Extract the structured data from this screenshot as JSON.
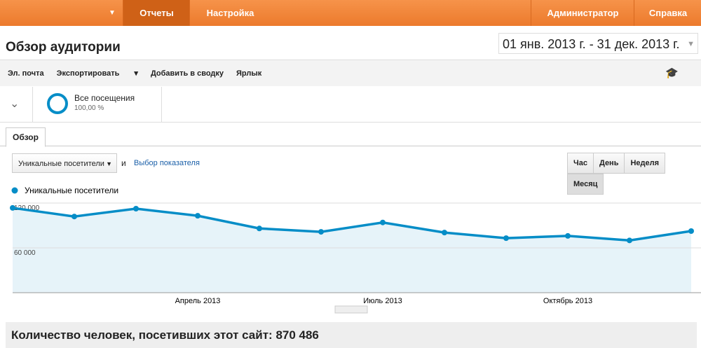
{
  "nav": {
    "active": "Отчеты",
    "items": [
      "Настройка"
    ],
    "right": [
      "Администратор",
      "Справка"
    ]
  },
  "header": {
    "title": "Обзор аудитории",
    "date_range": "01 янв. 2013 г. - 31 дек. 2013 г."
  },
  "toolbar": {
    "items": [
      "Эл. почта",
      "Экспортировать",
      "Добавить в сводку",
      "Ярлык"
    ]
  },
  "segment": {
    "name": "Все посещения",
    "share": "100,00 %"
  },
  "tab": "Обзор",
  "controls": {
    "metric": "Уникальные посетители",
    "conjunction": "и",
    "pick_metric": "Выбор показателя",
    "periods": [
      "Час",
      "День",
      "Неделя",
      "Месяц"
    ],
    "active_period": 3
  },
  "chart_data": {
    "type": "line",
    "categories": [
      null,
      null,
      null,
      "Апрель 2013",
      null,
      null,
      "Июль 2013",
      null,
      null,
      "Октябрь 2013",
      null,
      null
    ],
    "series": [
      {
        "name": "Уникальные посетители",
        "color": "#058dc7",
        "values": [
          113500,
          102000,
          112500,
          103000,
          86000,
          81500,
          94000,
          80500,
          73000,
          76000,
          70000,
          82500
        ]
      }
    ],
    "ylim": [
      0,
      120000
    ],
    "yticks": [
      {
        "value": 60000,
        "label": "60 000"
      },
      {
        "value": 120000,
        "label": "120 000"
      }
    ],
    "grid": true,
    "area": true
  },
  "summary": {
    "label": "Количество человек, посетивших этот сайт:",
    "value": "870 486"
  }
}
